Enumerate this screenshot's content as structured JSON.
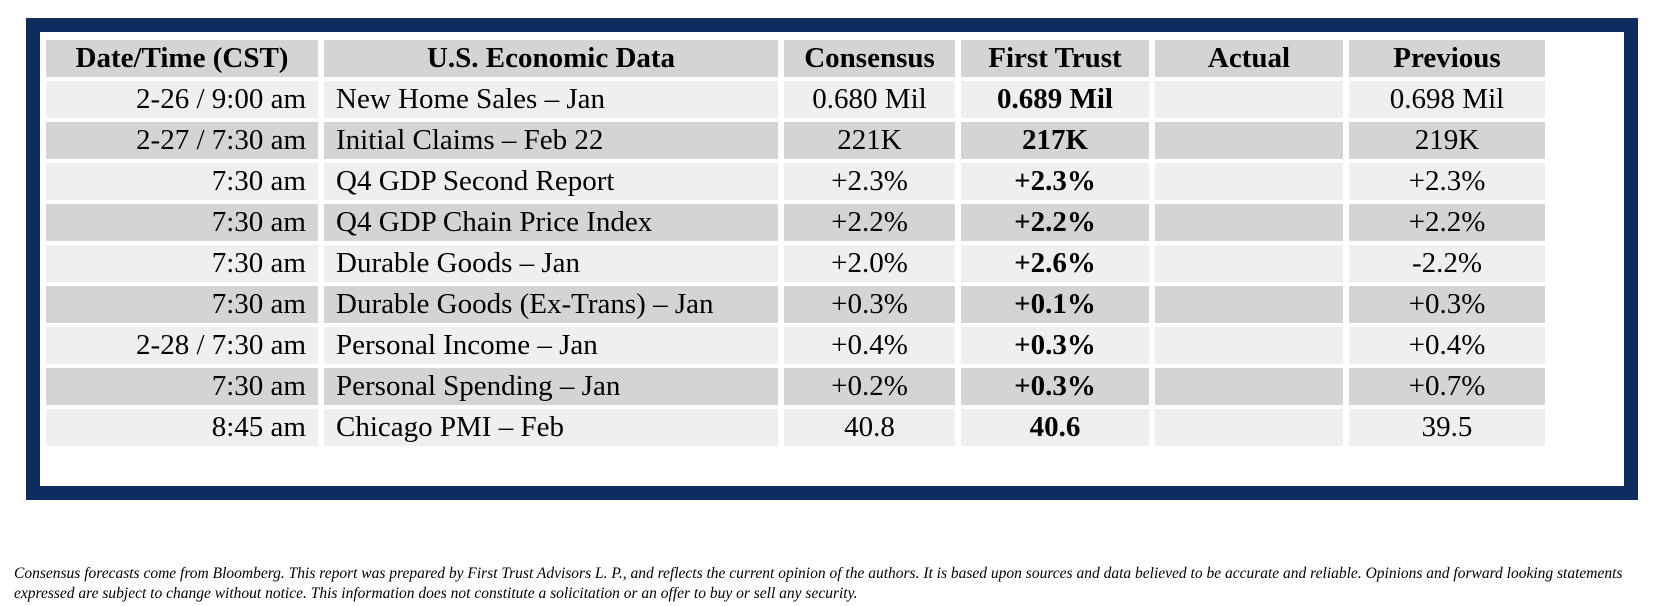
{
  "table": {
    "headers": [
      "Date/Time (CST)",
      "U.S. Economic Data",
      "Consensus",
      "First Trust",
      "Actual",
      "Previous"
    ],
    "rows": [
      {
        "time": "2-26 / 9:00 am",
        "indicator": "New Home Sales – Jan",
        "consensus": "0.680 Mil",
        "first_trust": "0.689 Mil",
        "actual": "",
        "previous": "0.698 Mil"
      },
      {
        "time": "2-27 / 7:30 am",
        "indicator": "Initial Claims – Feb 22",
        "consensus": "221K",
        "first_trust": "217K",
        "actual": "",
        "previous": "219K"
      },
      {
        "time": "7:30 am",
        "indicator": "Q4 GDP Second Report",
        "consensus": "+2.3%",
        "first_trust": "+2.3%",
        "actual": "",
        "previous": "+2.3%"
      },
      {
        "time": "7:30 am",
        "indicator": "Q4 GDP Chain Price Index",
        "consensus": "+2.2%",
        "first_trust": "+2.2%",
        "actual": "",
        "previous": "+2.2%"
      },
      {
        "time": "7:30 am",
        "indicator": "Durable Goods – Jan",
        "consensus": "+2.0%",
        "first_trust": "+2.6%",
        "actual": "",
        "previous": "-2.2%"
      },
      {
        "time": "7:30 am",
        "indicator": "Durable Goods (Ex-Trans) – Jan",
        "consensus": "+0.3%",
        "first_trust": "+0.1%",
        "actual": "",
        "previous": "+0.3%"
      },
      {
        "time": "2-28 / 7:30 am",
        "indicator": "Personal Income – Jan",
        "consensus": "+0.4%",
        "first_trust": "+0.3%",
        "actual": "",
        "previous": "+0.4%"
      },
      {
        "time": "7:30 am",
        "indicator": "Personal Spending – Jan",
        "consensus": "+0.2%",
        "first_trust": "+0.3%",
        "actual": "",
        "previous": "+0.7%"
      },
      {
        "time": "8:45 am",
        "indicator": "Chicago PMI – Feb",
        "consensus": "40.8",
        "first_trust": "40.6",
        "actual": "",
        "previous": "39.5"
      }
    ]
  },
  "disclaimer": "Consensus forecasts come from Bloomberg.  This report was prepared by First Trust Advisors L. P., and reflects the current opinion of the authors.  It is based upon sources and data believed to be accurate and reliable.  Opinions and forward looking statements expressed are subject to change without notice.  This information does not constitute a solicitation or an offer to buy or sell any security.",
  "colors": {
    "frame": "#0d2d5e",
    "header_bg": "#d4d4d4",
    "row_light": "#efefef",
    "row_dark": "#d4d4d4"
  }
}
